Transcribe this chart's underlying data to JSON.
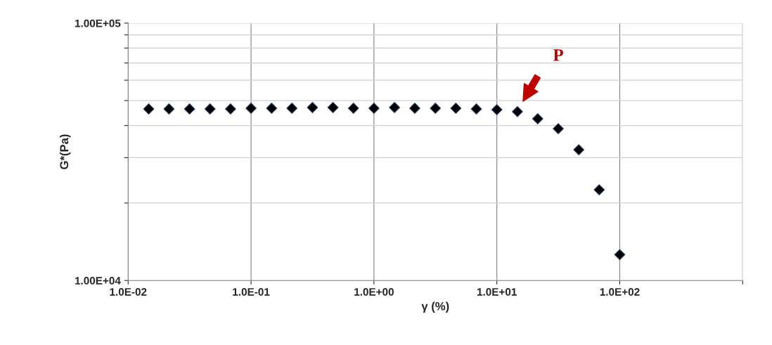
{
  "chart_data": {
    "type": "scatter",
    "xlabel": "γ (%)",
    "ylabel": "G*(Pa)",
    "log": "xy",
    "grid": true,
    "marker": "diamond",
    "x": [
      0.0147,
      0.0215,
      0.0316,
      0.0464,
      0.0681,
      0.1,
      0.147,
      0.215,
      0.316,
      0.464,
      0.681,
      1.0,
      1.47,
      2.15,
      3.16,
      4.64,
      6.81,
      10.0,
      14.7,
      21.5,
      31.6,
      46.4,
      68.1,
      100
    ],
    "series": [
      {
        "color": "#000000",
        "values": [
          46400,
          46400,
          46400,
          46400,
          46400,
          46700,
          46700,
          46700,
          47000,
          47000,
          46700,
          46700,
          47000,
          46700,
          46700,
          46700,
          46400,
          46100,
          45300,
          42500,
          38900,
          32200,
          22500,
          12600
        ]
      }
    ],
    "xlim": [
      0.01,
      1000
    ],
    "ylim": [
      10000,
      100000
    ],
    "xticks": [
      {
        "value": 0.01,
        "label": "1.0E-02"
      },
      {
        "value": 0.1,
        "label": "1.0E-01"
      },
      {
        "value": 1,
        "label": "1.0E+00"
      },
      {
        "value": 10,
        "label": "1.0E+01"
      },
      {
        "value": 100,
        "label": "1.0E+02"
      },
      {
        "value": 1000,
        "label": null
      }
    ],
    "yticks": [
      {
        "value": 10000,
        "label": "1.00E+04"
      },
      {
        "value": 20000,
        "label": null
      },
      {
        "value": 30000,
        "label": null
      },
      {
        "value": 40000,
        "label": null
      },
      {
        "value": 50000,
        "label": null
      },
      {
        "value": 60000,
        "label": null
      },
      {
        "value": 70000,
        "label": null
      },
      {
        "value": 80000,
        "label": null
      },
      {
        "value": 90000,
        "label": null
      },
      {
        "value": 100000,
        "label": "1.00E+05"
      }
    ],
    "annotations": [
      "P"
    ]
  }
}
